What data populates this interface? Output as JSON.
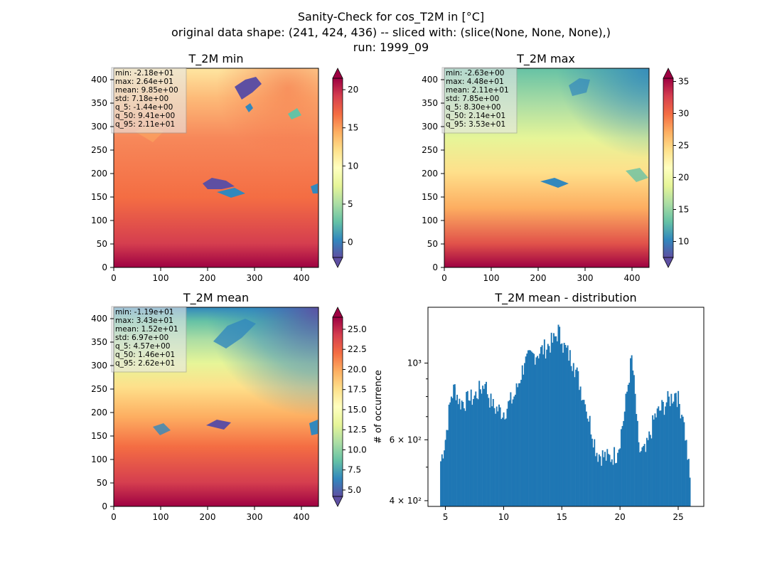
{
  "figure": {
    "title_lines": [
      "Sanity-Check for cos_T2M in [°C]",
      "original data shape: (241, 424, 436) -- sliced with: (slice(None, None, None),)",
      "run: 1999_09"
    ]
  },
  "colors": {
    "spectral_r": [
      "#5e4fa2",
      "#3288bd",
      "#66c2a5",
      "#abdda4",
      "#e6f598",
      "#ffffbf",
      "#fee08b",
      "#fdae61",
      "#f46d43",
      "#d53e4f",
      "#9e0142"
    ],
    "hist_bar": "#1f77b4",
    "stats_box_bg": "#e8e8e8"
  },
  "chart_data": [
    {
      "type": "heatmap",
      "title": "T_2M min",
      "x_ticks": [
        "0",
        "100",
        "200",
        "300",
        "400"
      ],
      "y_ticks": [
        "0",
        "50",
        "100",
        "150",
        "200",
        "250",
        "300",
        "350",
        "400"
      ],
      "xlim": [
        0,
        436
      ],
      "ylim": [
        0,
        424
      ],
      "colorbar": {
        "vmin": -2.0,
        "vmax": 21.5,
        "ticks": [
          0,
          5,
          10,
          15,
          20
        ],
        "tick_labels": [
          "0",
          "5",
          "10",
          "15",
          "20"
        ]
      },
      "stats": [
        "min: -2.18e+01",
        "max: 2.64e+01",
        "mean: 9.85e+00",
        "std: 7.18e+00",
        "q_5: -1.44e+00",
        "q_50: 9.41e+00",
        "q_95: 2.11e+01"
      ]
    },
    {
      "type": "heatmap",
      "title": "T_2M max",
      "x_ticks": [
        "0",
        "100",
        "200",
        "300",
        "400"
      ],
      "y_ticks": [
        "0",
        "50",
        "100",
        "150",
        "200",
        "250",
        "300",
        "350",
        "400"
      ],
      "xlim": [
        0,
        436
      ],
      "ylim": [
        0,
        424
      ],
      "colorbar": {
        "vmin": 7.5,
        "vmax": 35.5,
        "ticks": [
          10,
          15,
          20,
          25,
          30,
          35
        ],
        "tick_labels": [
          "10",
          "15",
          "20",
          "25",
          "30",
          "35"
        ]
      },
      "stats": [
        "min: -2.63e+00",
        "max: 4.48e+01",
        "mean: 2.11e+01",
        "std: 7.85e+00",
        "q_5: 8.30e+00",
        "q_50: 2.14e+01",
        "q_95: 3.53e+01"
      ]
    },
    {
      "type": "heatmap",
      "title": "T_2M mean",
      "x_ticks": [
        "0",
        "100",
        "200",
        "300",
        "400"
      ],
      "y_ticks": [
        "0",
        "50",
        "100",
        "150",
        "200",
        "250",
        "300",
        "350",
        "400"
      ],
      "xlim": [
        0,
        436
      ],
      "ylim": [
        0,
        424
      ],
      "colorbar": {
        "vmin": 4.2,
        "vmax": 26.5,
        "ticks": [
          5,
          7.5,
          10,
          12.5,
          15,
          17.5,
          20,
          22.5,
          25
        ],
        "tick_labels": [
          "5.0",
          "7.5",
          "10.0",
          "12.5",
          "15.0",
          "17.5",
          "20.0",
          "22.5",
          "25.0"
        ]
      },
      "stats": [
        "min: -1.19e+01",
        "max: 3.43e+01",
        "mean: 1.52e+01",
        "std: 6.97e+00",
        "q_5: 4.57e+00",
        "q_50: 1.46e+01",
        "q_95: 2.62e+01"
      ]
    },
    {
      "type": "bar",
      "title": "T_2M mean - distribution",
      "ylabel": "# of occurrence",
      "xlabel": "",
      "xlim": [
        3.5,
        27.2
      ],
      "ylim": [
        385,
        1450
      ],
      "y_scale": "log",
      "x_ticks": [
        5,
        10,
        15,
        20,
        25
      ],
      "x_tick_labels": [
        "5",
        "10",
        "15",
        "20",
        "25"
      ],
      "y_major_ticks": [
        400,
        600,
        1000
      ],
      "y_major_tick_labels": [
        "4 × 10²",
        "6 × 10²",
        "10³"
      ],
      "bin_width": 0.1,
      "bins": [
        {
          "x": 4.6,
          "count": 520
        },
        {
          "x": 5.0,
          "count": 600
        },
        {
          "x": 5.5,
          "count": 800
        },
        {
          "x": 5.8,
          "count": 850
        },
        {
          "x": 6.2,
          "count": 770
        },
        {
          "x": 7.0,
          "count": 780
        },
        {
          "x": 7.5,
          "count": 800
        },
        {
          "x": 8.0,
          "count": 840
        },
        {
          "x": 8.4,
          "count": 870
        },
        {
          "x": 9.0,
          "count": 750
        },
        {
          "x": 10.0,
          "count": 720
        },
        {
          "x": 11.0,
          "count": 810
        },
        {
          "x": 11.8,
          "count": 1000
        },
        {
          "x": 12.5,
          "count": 1050
        },
        {
          "x": 13.5,
          "count": 1100
        },
        {
          "x": 14.3,
          "count": 1160
        },
        {
          "x": 14.7,
          "count": 1240
        },
        {
          "x": 15.0,
          "count": 1140
        },
        {
          "x": 16.0,
          "count": 1000
        },
        {
          "x": 17.0,
          "count": 760
        },
        {
          "x": 18.0,
          "count": 550
        },
        {
          "x": 19.0,
          "count": 530
        },
        {
          "x": 19.8,
          "count": 550
        },
        {
          "x": 20.4,
          "count": 720
        },
        {
          "x": 21.0,
          "count": 1030
        },
        {
          "x": 21.6,
          "count": 560
        },
        {
          "x": 22.2,
          "count": 550
        },
        {
          "x": 23.0,
          "count": 700
        },
        {
          "x": 24.0,
          "count": 770
        },
        {
          "x": 24.8,
          "count": 820
        },
        {
          "x": 25.4,
          "count": 700
        },
        {
          "x": 26.0,
          "count": 460
        }
      ]
    }
  ]
}
